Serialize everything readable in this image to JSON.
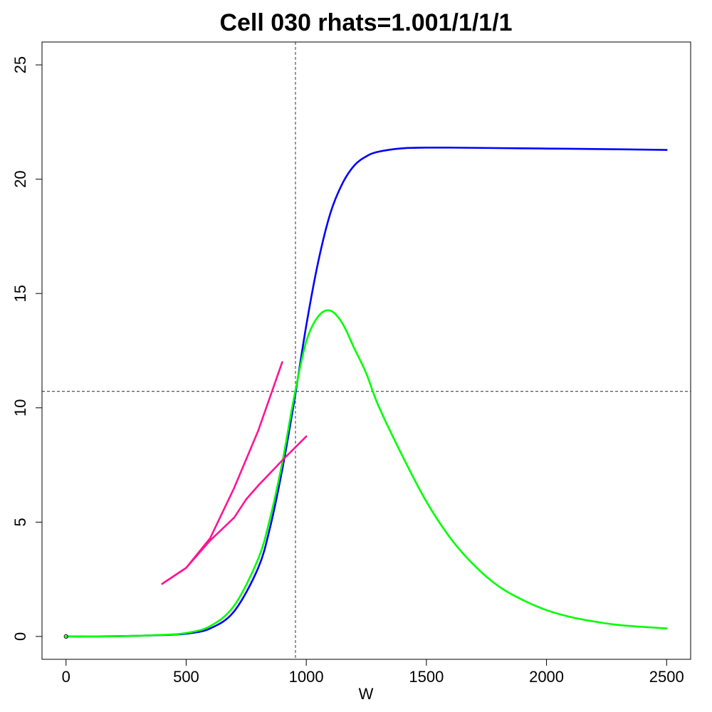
{
  "chart_data": {
    "type": "line",
    "title": "Cell 030 rhats=1.001/1/1/1",
    "xlabel": "W",
    "ylabel": "",
    "xlim": [
      -100,
      2600
    ],
    "ylim": [
      -1,
      26
    ],
    "xticks": [
      0,
      500,
      1000,
      1500,
      2000,
      2500
    ],
    "yticks": [
      0,
      5,
      10,
      15,
      20,
      25
    ],
    "grid": false,
    "legend": "none",
    "reference_lines": {
      "vertical_x": 955,
      "horizontal_y": 10.72
    },
    "origin_point": {
      "x": 0,
      "y": 0
    },
    "series": [
      {
        "color": "#0000ff",
        "x": [
          0,
          200,
          400,
          500,
          600,
          700,
          800,
          850,
          900,
          950,
          1000,
          1050,
          1100,
          1150,
          1200,
          1250,
          1300,
          1400,
          1500,
          1600,
          1800,
          2000,
          2200,
          2500
        ],
        "y": [
          0,
          0.01,
          0.06,
          0.12,
          0.35,
          1.1,
          3.0,
          4.8,
          7.3,
          10.3,
          13.6,
          16.4,
          18.5,
          19.8,
          20.6,
          21.0,
          21.2,
          21.35,
          21.38,
          21.38,
          21.36,
          21.34,
          21.32,
          21.28
        ]
      },
      {
        "color": "#00ff00",
        "x": [
          0,
          200,
          400,
          500,
          600,
          700,
          800,
          850,
          900,
          950,
          1000,
          1050,
          1100,
          1150,
          1200,
          1250,
          1300,
          1400,
          1500,
          1600,
          1700,
          1800,
          1900,
          2000,
          2100,
          2200,
          2300,
          2400,
          2500
        ],
        "y": [
          0,
          0.01,
          0.07,
          0.15,
          0.45,
          1.35,
          3.4,
          5.2,
          7.6,
          10.5,
          12.9,
          14.0,
          14.25,
          13.7,
          12.6,
          11.5,
          10.1,
          7.9,
          5.9,
          4.3,
          3.1,
          2.2,
          1.6,
          1.15,
          0.85,
          0.65,
          0.5,
          0.42,
          0.35
        ]
      },
      {
        "color": "#ff1493",
        "x": [
          400,
          500,
          600,
          700,
          800,
          900
        ],
        "y": [
          2.3,
          3.0,
          4.3,
          6.5,
          9.0,
          12.0
        ]
      },
      {
        "color": "#ff1493",
        "x": [
          400,
          500,
          600,
          700,
          750,
          800,
          900,
          1000
        ],
        "y": [
          2.3,
          3.0,
          4.2,
          5.2,
          6.0,
          6.6,
          7.7,
          8.75
        ]
      }
    ]
  }
}
